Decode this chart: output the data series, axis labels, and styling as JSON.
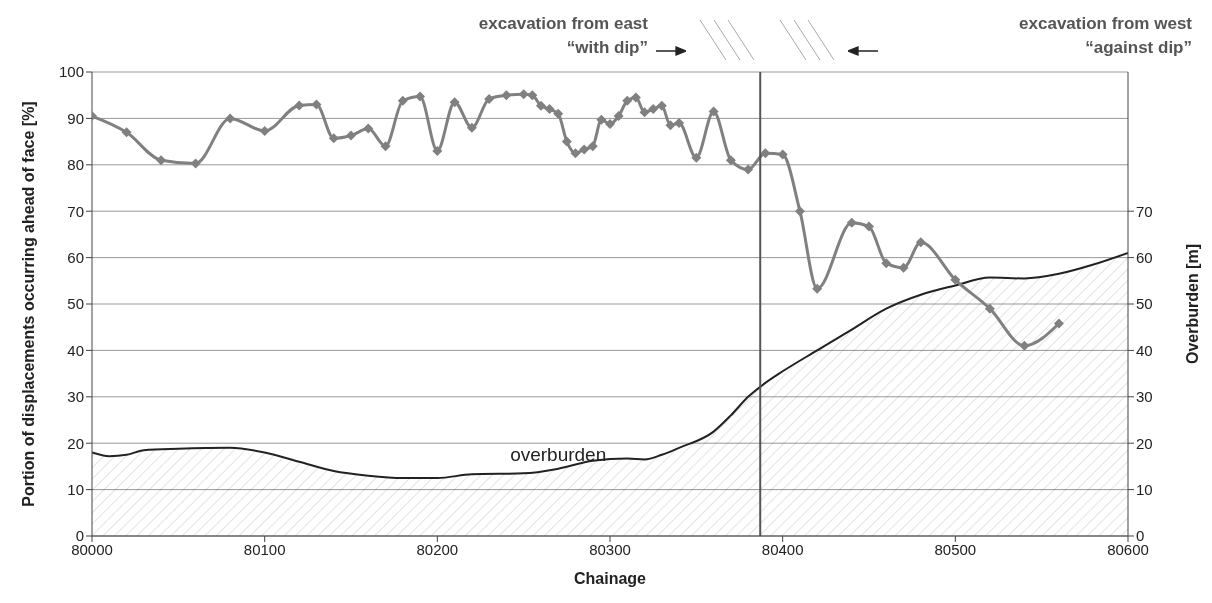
{
  "chart_data": {
    "type": "line",
    "xlabel": "Chainage",
    "ylabel": "Portion of displacements occurring ahead of face [%]",
    "y2label": "Overburden [m]",
    "annotations": [
      "excavation from east\n“with dip”",
      "excavation from west\n“against dip”"
    ],
    "xlim": [
      80000,
      80600
    ],
    "xticks": [
      80000,
      80100,
      80200,
      80300,
      80400,
      80500,
      80600
    ],
    "ylim": [
      0,
      100
    ],
    "yticks": [
      0,
      10,
      20,
      30,
      40,
      50,
      60,
      70,
      80,
      90,
      100
    ],
    "y2lim": [
      0,
      100
    ],
    "y2ticks": [
      0,
      10,
      20,
      30,
      40,
      50,
      60,
      70
    ],
    "grid": "y",
    "legend": false,
    "ref_lines": [
      {
        "axis": "x",
        "value": 80387,
        "color": "#555555"
      }
    ],
    "series": [
      {
        "color": "#808080",
        "marker": "diamond",
        "line_style": "solid",
        "x": [
          80000,
          80020,
          80040,
          80060,
          80080,
          80100,
          80120,
          80130,
          80140,
          80150,
          80160,
          80170,
          80180,
          80190,
          80200,
          80210,
          80220,
          80230,
          80240,
          80250,
          80255,
          80260,
          80265,
          80270,
          80275,
          80280,
          80285,
          80290,
          80295,
          80300,
          80305,
          80310,
          80315,
          80320,
          80325,
          80330,
          80335,
          80340,
          80350,
          80360,
          80370,
          80380,
          80390,
          80400,
          80410,
          80420,
          80440,
          80450,
          80460,
          80470,
          80480,
          80500,
          80520,
          80540,
          80560
        ],
        "values": [
          90.5,
          87,
          81,
          80.3,
          90,
          87.3,
          92.8,
          93,
          85.7,
          86.3,
          87.8,
          84,
          93.8,
          94.7,
          83,
          93.5,
          88,
          94.2,
          95,
          95.2,
          95,
          92.7,
          92,
          91,
          85,
          82.5,
          83.3,
          84,
          89.7,
          88.8,
          90.5,
          93.8,
          94.5,
          91.3,
          92,
          92.7,
          88.5,
          89,
          81.5,
          91.5,
          81,
          79,
          82.5,
          82.2,
          70,
          53.3,
          67.5,
          66.7,
          58.8,
          57.8,
          63.3,
          55.2,
          49,
          41,
          45.8
        ]
      },
      {
        "type": "area",
        "name": "overburden",
        "axis": "y2",
        "color": "#222222",
        "marker": "none",
        "line_style": "solid",
        "x": [
          80000,
          80010,
          80020,
          80030,
          80050,
          80080,
          80100,
          80120,
          80140,
          80160,
          80180,
          80200,
          80220,
          80250,
          80270,
          80290,
          80310,
          80320,
          80330,
          80340,
          80360,
          80370,
          80380,
          80390,
          80400,
          80420,
          80440,
          80460,
          80480,
          80500,
          80520,
          80540,
          80560,
          80580,
          80600
        ],
        "values": [
          18,
          17.2,
          17.5,
          18.5,
          18.8,
          19,
          18,
          16,
          14,
          13,
          12.5,
          12.5,
          13.3,
          13.5,
          14.5,
          16.2,
          16.7,
          16.5,
          17.5,
          19,
          22.5,
          26,
          30,
          33,
          35.5,
          40,
          44.5,
          49,
          52,
          54,
          55.7,
          55.5,
          56.5,
          58.5,
          61
        ]
      }
    ]
  }
}
